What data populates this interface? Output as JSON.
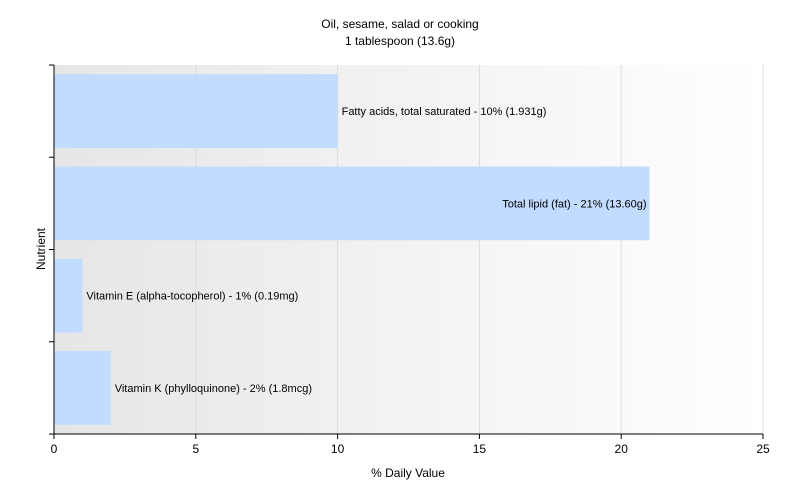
{
  "chart_data": {
    "type": "bar",
    "orientation": "horizontal",
    "title": "Oil, sesame, salad or cooking",
    "subtitle": "1 tablespoon (13.6g)",
    "xlabel": "% Daily Value",
    "ylabel": "Nutrient",
    "xlim": [
      0,
      25
    ],
    "xticks": [
      0,
      5,
      10,
      15,
      20,
      25
    ],
    "grid": true,
    "bar_color": "#c2dcff",
    "bars": [
      {
        "label": "Fatty acids, total saturated - 10% (1.931g)",
        "value": 10
      },
      {
        "label": "Total lipid (fat) - 21% (13.60g)",
        "value": 21
      },
      {
        "label": "Vitamin E (alpha-tocopherol) - 1% (0.19mg)",
        "value": 1
      },
      {
        "label": "Vitamin K (phylloquinone) - 2% (1.8mcg)",
        "value": 2
      }
    ]
  }
}
